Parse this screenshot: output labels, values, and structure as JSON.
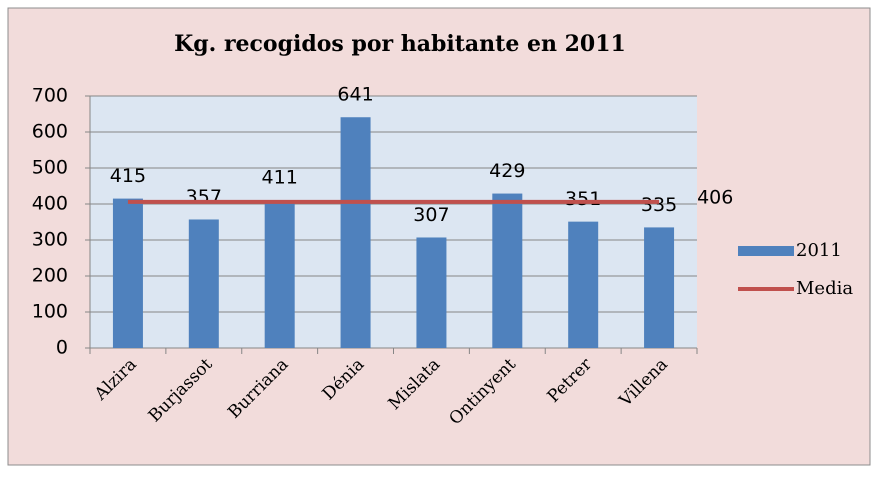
{
  "chart_data": {
    "type": "bar",
    "title": "Kg. recogidos por habitante en 2011",
    "categories": [
      "Alzira",
      "Burjassot",
      "Burriana",
      "Dénia",
      "Mislata",
      "Ontinyent",
      "Petrer",
      "Villena"
    ],
    "series": [
      {
        "name": "2011",
        "type": "bar",
        "color": "#4f81bd",
        "values": [
          415,
          357,
          411,
          641,
          307,
          429,
          351,
          335
        ]
      },
      {
        "name": "Media",
        "type": "line",
        "color": "#c0504d",
        "values": [
          406,
          406,
          406,
          406,
          406,
          406,
          406,
          406
        ]
      }
    ],
    "ylim": [
      0,
      700
    ],
    "yticks": [
      0,
      100,
      200,
      300,
      400,
      500,
      600,
      700
    ],
    "grid": true,
    "legend": "right"
  }
}
